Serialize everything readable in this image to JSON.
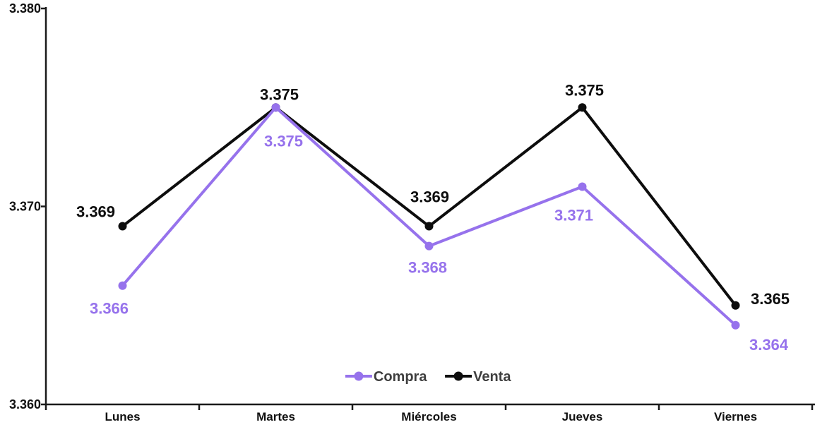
{
  "page": {
    "background": "#ffffff"
  },
  "chart_data": {
    "type": "line",
    "title": "",
    "xlabel": "",
    "ylabel": "",
    "categories": [
      "Lunes",
      "Martes",
      "Miércoles",
      "Jueves",
      "Viernes"
    ],
    "series": [
      {
        "name": "Venta",
        "color": "#0d0d0d",
        "values": [
          3.369,
          3.375,
          3.369,
          3.375,
          3.365
        ]
      },
      {
        "name": "Compra",
        "color": "#9672ec",
        "values": [
          3.366,
          3.375,
          3.368,
          3.371,
          3.364
        ]
      }
    ],
    "ylim": [
      3.36,
      3.38
    ],
    "yticks": [
      3.36,
      3.37,
      3.38
    ],
    "value_decimals": 3,
    "grid": false,
    "legend_position": "bottom-center",
    "legend_text_color": "#3f3f3f",
    "axis_color": "#1a1a1a",
    "label_offsets": {
      "Venta": [
        [
          -38,
          -13
        ],
        [
          5,
          -11
        ],
        [
          1,
          -34
        ],
        [
          3,
          -17
        ],
        [
          49,
          -2
        ]
      ],
      "Compra": [
        [
          -19,
          40
        ],
        [
          11,
          55
        ],
        [
          -2,
          38
        ],
        [
          -12,
          48
        ],
        [
          47,
          35
        ]
      ]
    }
  }
}
